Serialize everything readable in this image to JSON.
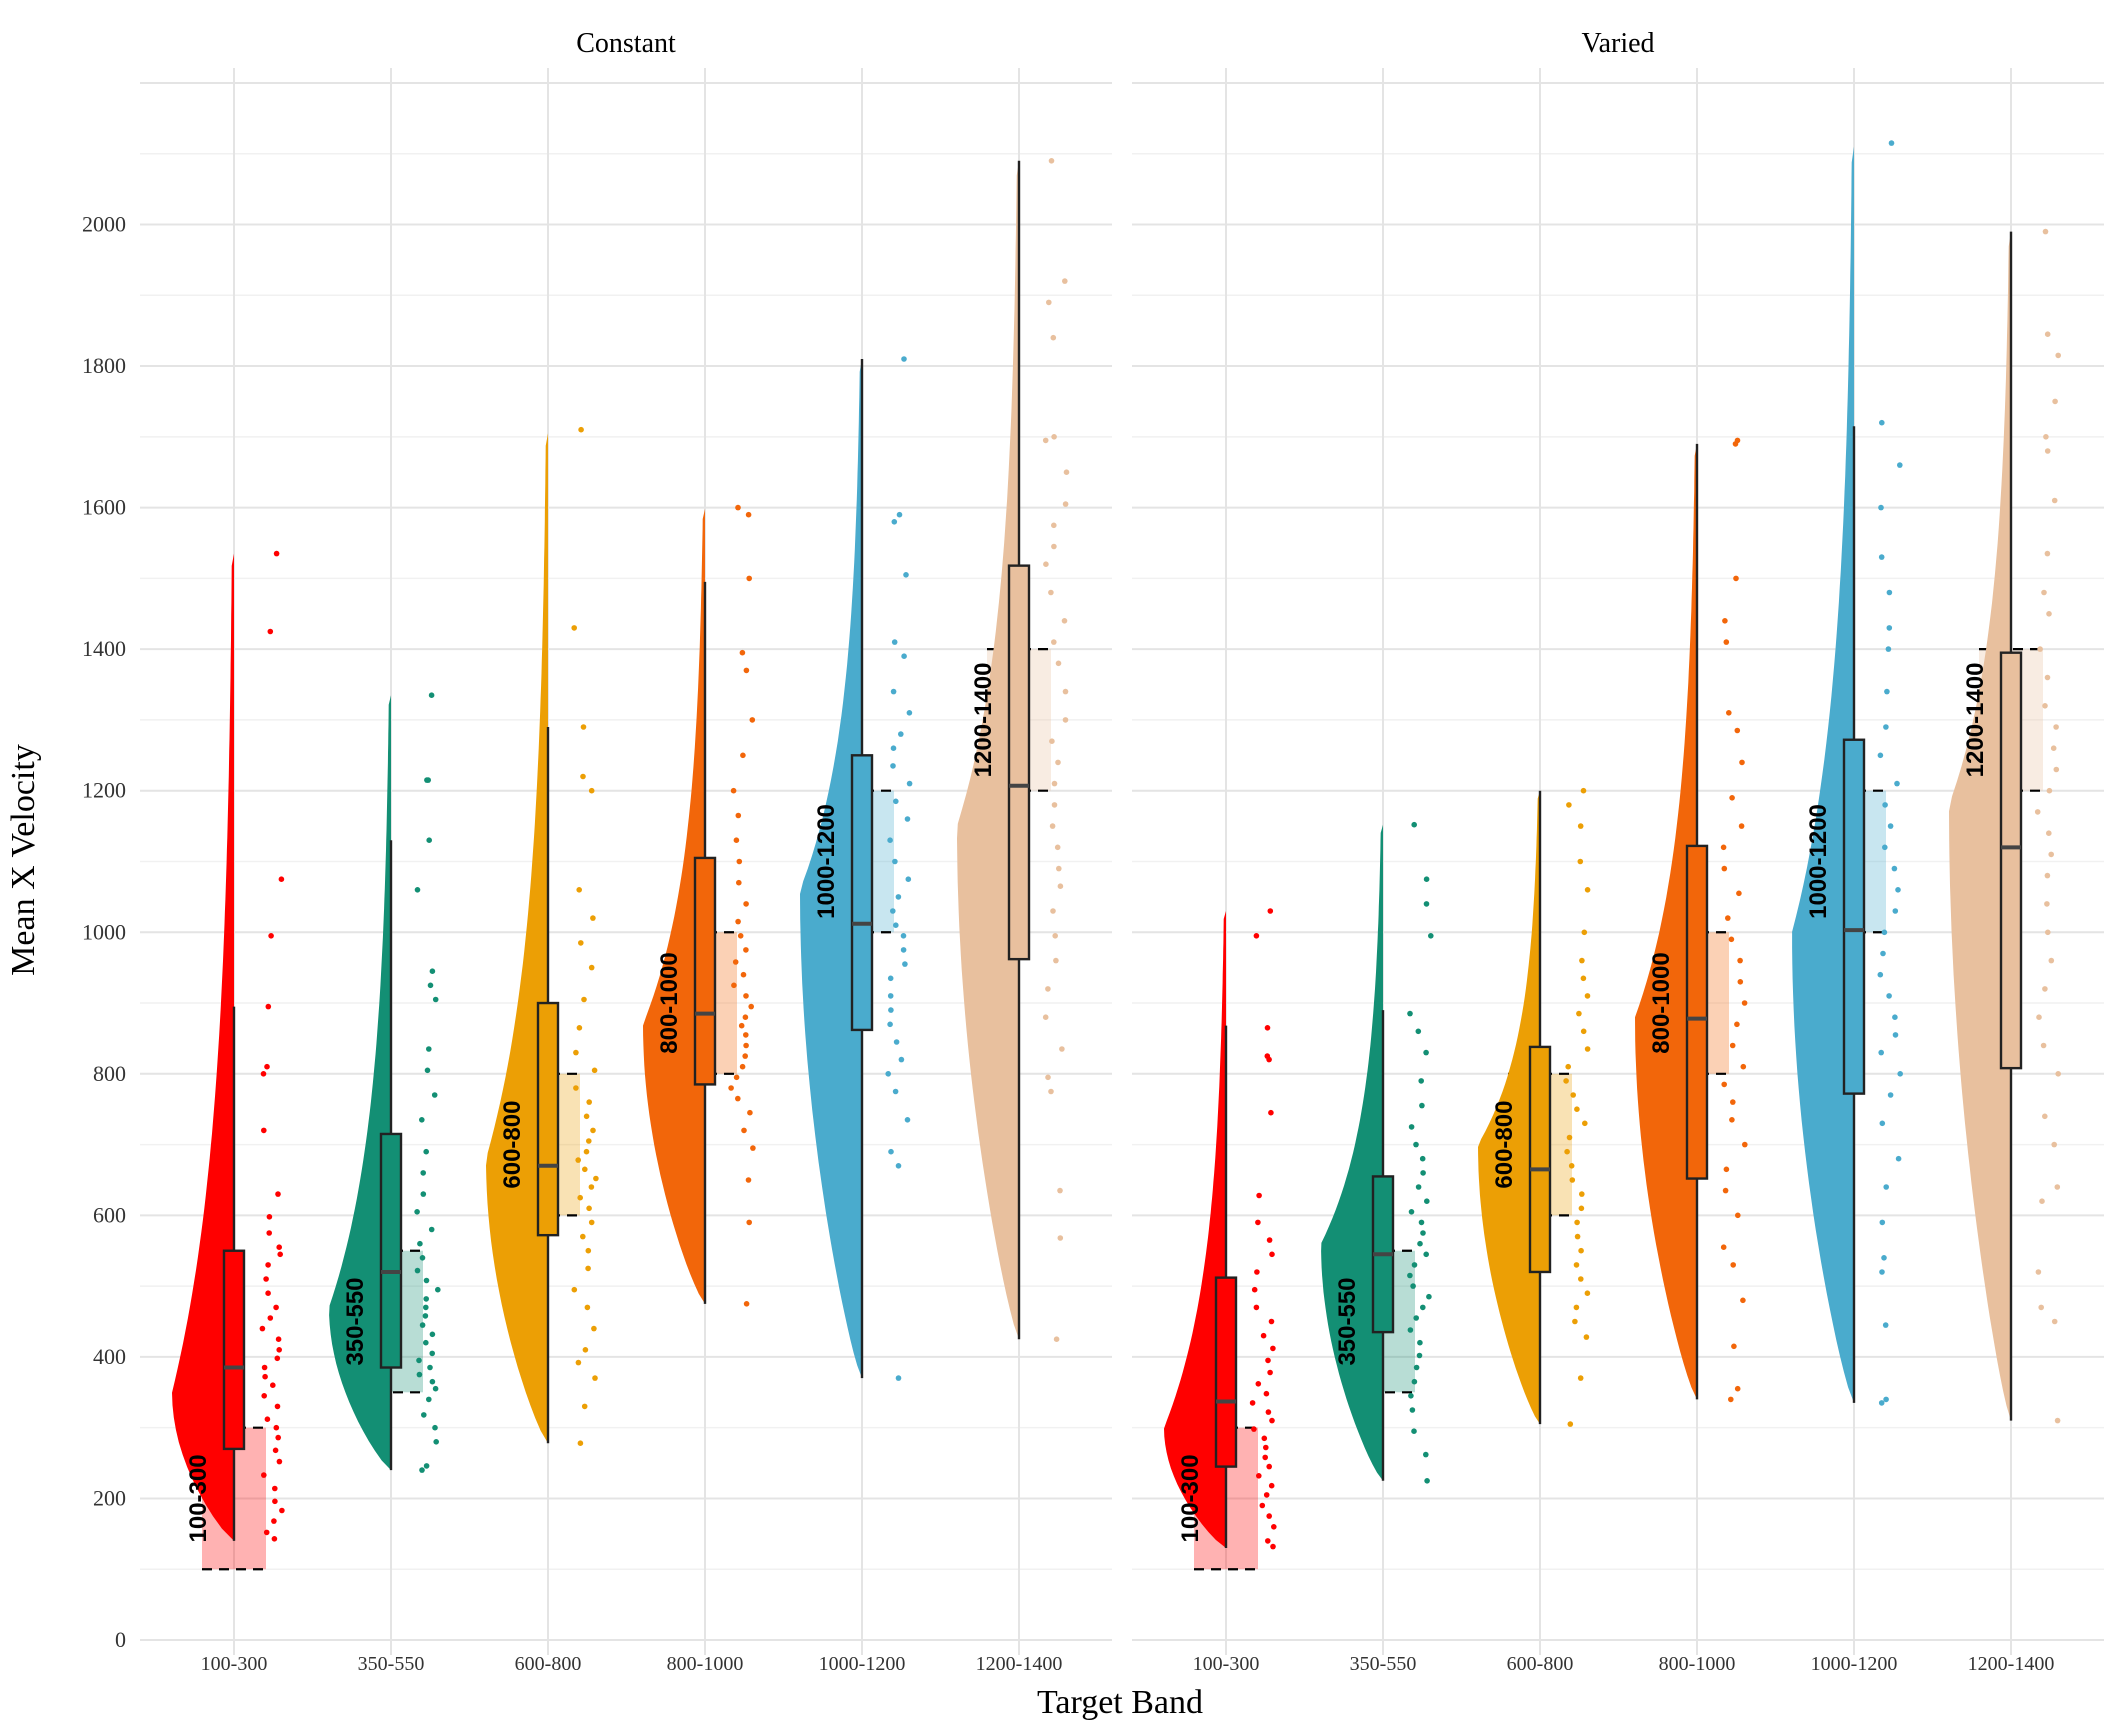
{
  "chart_data": {
    "type": "raincloud",
    "xlabel": "Target  Band",
    "ylabel": "Mean X Velocity",
    "ylim": [
      0,
      2200
    ],
    "yticks": [
      0,
      200,
      400,
      600,
      800,
      1000,
      1200,
      1400,
      1600,
      1800,
      2000
    ],
    "ytick_labels": [
      "0",
      "200",
      "400",
      "600",
      "800",
      "1000",
      "1200",
      "1400",
      "1600",
      "1800",
      "2000"
    ],
    "grid": true,
    "legend": "none",
    "categories": [
      "100-300",
      "350-550",
      "600-800",
      "800-1000",
      "1000-1200",
      "1200-1400"
    ],
    "colors": [
      "#FF0000",
      "#138F74",
      "#EC9F05",
      "#F2660A",
      "#4AABCD",
      "#E8C09E"
    ],
    "bands": [
      [
        100,
        300
      ],
      [
        350,
        550
      ],
      [
        600,
        800
      ],
      [
        800,
        1000
      ],
      [
        1000,
        1200
      ],
      [
        1200,
        1400
      ]
    ],
    "band_labels": [
      "100-300",
      "350-550",
      "600-800",
      "800-1000",
      "1000-1200",
      "1200-1400"
    ],
    "panels": [
      {
        "title": "Constant",
        "groups": [
          {
            "category": "100-300",
            "min": 140,
            "q1": 270,
            "median": 385,
            "q3": 550,
            "max": 895,
            "density_min": 140,
            "density_max": 1535,
            "density_mode": 350,
            "points": [
              143,
              152,
              168,
              183,
              196,
              214,
              233,
              252,
              268,
              286,
              300,
              312,
              330,
              345,
              360,
              372,
              385,
              398,
              410,
              425,
              440,
              455,
              470,
              490,
              510,
              530,
              545,
              555,
              575,
              598,
              630,
              720,
              800,
              810,
              895,
              995,
              1075,
              1425,
              1535
            ]
          },
          {
            "category": "350-550",
            "min": 240,
            "q1": 385,
            "median": 520,
            "q3": 715,
            "max": 1130,
            "density_min": 240,
            "density_max": 1335,
            "density_mode": 470,
            "points": [
              240,
              246,
              280,
              300,
              318,
              340,
              355,
              365,
              375,
              385,
              395,
              405,
              420,
              432,
              445,
              458,
              470,
              482,
              495,
              508,
              522,
              540,
              560,
              580,
              605,
              630,
              660,
              690,
              735,
              770,
              805,
              835,
              905,
              925,
              945,
              1060,
              1130,
              1215,
              1215,
              1335
            ]
          },
          {
            "category": "600-800",
            "min": 278,
            "q1": 572,
            "median": 670,
            "q3": 900,
            "max": 1290,
            "density_min": 278,
            "density_max": 1705,
            "density_mode": 680,
            "points": [
              278,
              330,
              370,
              392,
              410,
              440,
              470,
              495,
              525,
              550,
              570,
              590,
              610,
              625,
              640,
              652,
              665,
              678,
              690,
              705,
              720,
              740,
              760,
              780,
              805,
              830,
              865,
              905,
              950,
              985,
              1020,
              1060,
              1200,
              1220,
              1290,
              1430,
              1710
            ]
          },
          {
            "category": "800-1000",
            "min": 475,
            "q1": 785,
            "median": 885,
            "q3": 1105,
            "max": 1495,
            "density_min": 475,
            "density_max": 1598,
            "density_mode": 870,
            "points": [
              475,
              590,
              650,
              695,
              720,
              745,
              765,
              780,
              795,
              810,
              825,
              840,
              855,
              868,
              880,
              895,
              910,
              925,
              940,
              958,
              975,
              995,
              1015,
              1040,
              1070,
              1100,
              1130,
              1165,
              1200,
              1250,
              1300,
              1370,
              1395,
              1500,
              1590,
              1600
            ]
          },
          {
            "category": "1000-1200",
            "min": 370,
            "q1": 862,
            "median": 1012,
            "q3": 1250,
            "max": 1810,
            "density_min": 370,
            "density_max": 1810,
            "density_mode": 1060,
            "points": [
              370,
              670,
              690,
              735,
              775,
              800,
              820,
              845,
              870,
              890,
              910,
              935,
              955,
              975,
              995,
              1010,
              1030,
              1050,
              1075,
              1100,
              1130,
              1160,
              1185,
              1210,
              1235,
              1260,
              1280,
              1310,
              1340,
              1390,
              1410,
              1505,
              1580,
              1590,
              1810
            ]
          },
          {
            "category": "1200-1400",
            "min": 425,
            "q1": 962,
            "median": 1207,
            "q3": 1518,
            "max": 2090,
            "density_min": 425,
            "density_max": 2090,
            "density_mode": 1150,
            "points": [
              425,
              568,
              635,
              775,
              795,
              835,
              880,
              920,
              960,
              995,
              1030,
              1065,
              1090,
              1120,
              1150,
              1180,
              1210,
              1240,
              1270,
              1300,
              1340,
              1380,
              1410,
              1440,
              1480,
              1520,
              1545,
              1575,
              1605,
              1650,
              1695,
              1700,
              1840,
              1890,
              1920,
              2090
            ]
          }
        ]
      },
      {
        "title": "Varied",
        "groups": [
          {
            "category": "100-300",
            "min": 130,
            "q1": 245,
            "median": 337,
            "q3": 512,
            "max": 868,
            "density_min": 130,
            "density_max": 1030,
            "density_mode": 300,
            "points": [
              132,
              140,
              160,
              175,
              190,
              205,
              218,
              232,
              245,
              258,
              272,
              285,
              298,
              310,
              322,
              335,
              348,
              362,
              378,
              395,
              412,
              430,
              450,
              470,
              495,
              520,
              545,
              565,
              590,
              628,
              745,
              820,
              825,
              865,
              995,
              1030
            ]
          },
          {
            "category": "350-550",
            "min": 225,
            "q1": 435,
            "median": 545,
            "q3": 655,
            "max": 890,
            "density_min": 225,
            "density_max": 1152,
            "density_mode": 560,
            "points": [
              225,
              262,
              295,
              325,
              345,
              365,
              385,
              402,
              420,
              438,
              455,
              470,
              485,
              500,
              515,
              530,
              545,
              560,
              575,
              590,
              605,
              620,
              640,
              660,
              680,
              700,
              725,
              755,
              790,
              830,
              860,
              885,
              995,
              1040,
              1075,
              1152
            ]
          },
          {
            "category": "600-800",
            "min": 305,
            "q1": 520,
            "median": 665,
            "q3": 838,
            "max": 1200,
            "density_min": 305,
            "density_max": 1200,
            "density_mode": 700,
            "points": [
              305,
              370,
              428,
              450,
              470,
              490,
              510,
              530,
              550,
              570,
              590,
              610,
              630,
              650,
              670,
              690,
              710,
              730,
              750,
              770,
              790,
              810,
              835,
              860,
              885,
              910,
              935,
              960,
              1000,
              1060,
              1100,
              1150,
              1180,
              1200
            ]
          },
          {
            "category": "800-1000",
            "min": 340,
            "q1": 652,
            "median": 878,
            "q3": 1122,
            "max": 1690,
            "density_min": 340,
            "density_max": 1690,
            "density_mode": 880,
            "points": [
              340,
              355,
              415,
              480,
              530,
              555,
              600,
              635,
              665,
              700,
              735,
              760,
              785,
              810,
              840,
              870,
              900,
              930,
              960,
              990,
              1020,
              1055,
              1090,
              1120,
              1150,
              1190,
              1240,
              1285,
              1310,
              1410,
              1440,
              1500,
              1690,
              1695
            ]
          },
          {
            "category": "1000-1200",
            "min": 335,
            "q1": 772,
            "median": 1003,
            "q3": 1272,
            "max": 1715,
            "density_min": 335,
            "density_max": 2110,
            "density_mode": 1000,
            "points": [
              335,
              340,
              445,
              520,
              540,
              590,
              640,
              680,
              730,
              770,
              800,
              830,
              855,
              880,
              910,
              940,
              970,
              1000,
              1030,
              1060,
              1090,
              1120,
              1150,
              1180,
              1210,
              1250,
              1290,
              1340,
              1400,
              1430,
              1480,
              1530,
              1600,
              1660,
              1720,
              2115
            ]
          },
          {
            "category": "1200-1400",
            "min": 310,
            "q1": 808,
            "median": 1120,
            "q3": 1395,
            "max": 1990,
            "density_min": 310,
            "density_max": 1990,
            "density_mode": 1180,
            "points": [
              310,
              450,
              470,
              520,
              620,
              640,
              700,
              740,
              800,
              840,
              880,
              920,
              960,
              1000,
              1040,
              1080,
              1110,
              1140,
              1170,
              1200,
              1230,
              1260,
              1290,
              1320,
              1360,
              1400,
              1450,
              1480,
              1535,
              1610,
              1680,
              1700,
              1750,
              1815,
              1845,
              1990
            ]
          }
        ]
      }
    ]
  }
}
